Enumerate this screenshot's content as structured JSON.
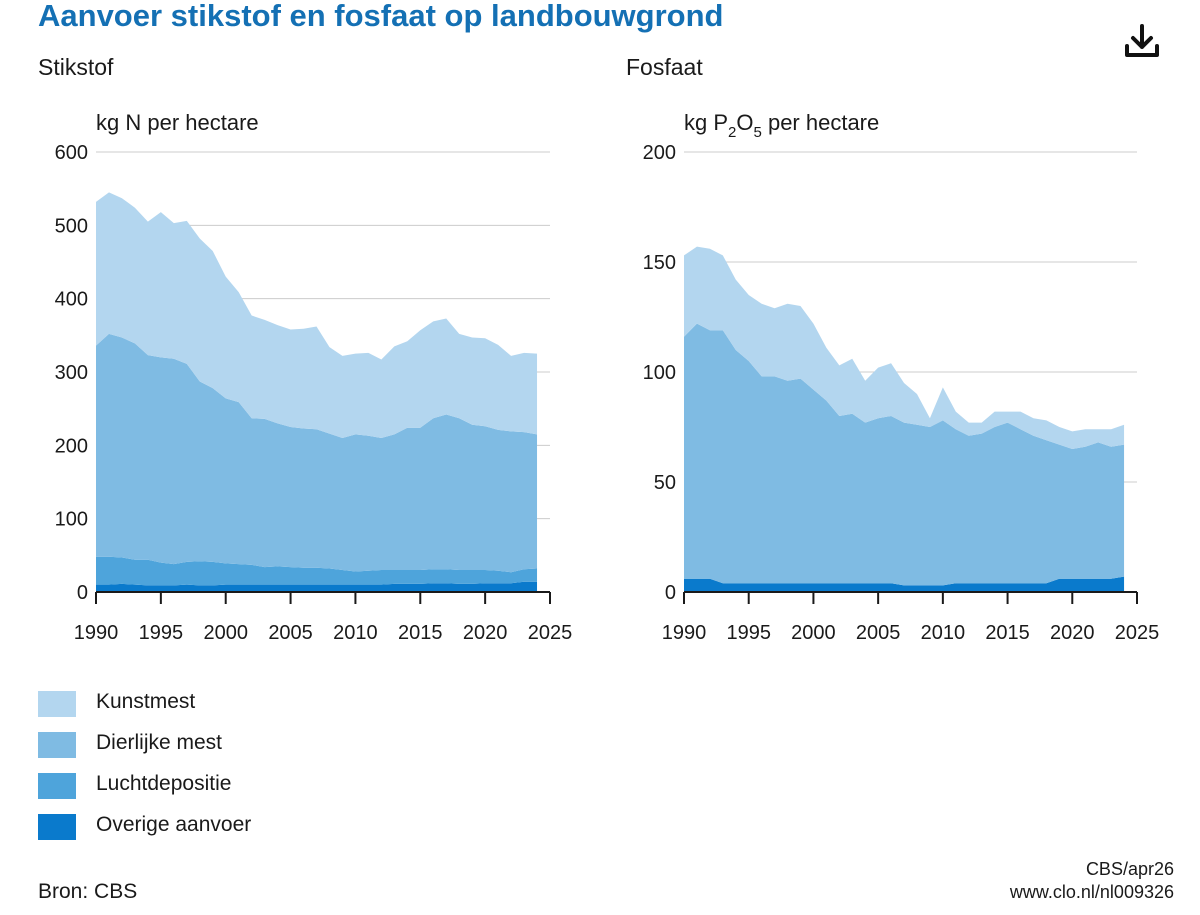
{
  "title": "Aanvoer stikstof en fosfaat op landbouwgrond",
  "download_label": "Download",
  "source": "Bron: CBS",
  "credit_line1": "CBS/apr26",
  "credit_line2": "www.clo.nl/nl009326",
  "colors": {
    "title": "#1470b4",
    "kunstmest": "#b3d6ef",
    "dierlijke_mest": "#7fbbe3",
    "luchtdepositie": "#4ea4db",
    "overige_aanvoer": "#0a7acc",
    "grid": "#cccccc"
  },
  "legend": [
    {
      "label": "Kunstmest",
      "color": "#b3d6ef"
    },
    {
      "label": "Dierlijke mest",
      "color": "#7fbbe3"
    },
    {
      "label": "Luchtdepositie",
      "color": "#4ea4db"
    },
    {
      "label": "Overige aanvoer",
      "color": "#0a7acc"
    }
  ],
  "stikstof_unit": "kg N per hectare",
  "fosfaat_unit_pre": "kg P",
  "fosfaat_unit_sub1": "2",
  "fosfaat_unit_mid": "O",
  "fosfaat_unit_sub2": "5",
  "fosfaat_unit_post": " per hectare",
  "chart_data": [
    {
      "type": "area",
      "stacked": true,
      "title": "Stikstof",
      "ylabel": "kg N per hectare",
      "xlabel": "",
      "xlim": [
        1990,
        2025
      ],
      "ylim": [
        0,
        600
      ],
      "x_ticks": [
        1990,
        1995,
        2000,
        2005,
        2010,
        2015,
        2020,
        2025
      ],
      "y_ticks": [
        0,
        100,
        200,
        300,
        400,
        500,
        600
      ],
      "grid": true,
      "x": [
        1990,
        1991,
        1992,
        1993,
        1994,
        1995,
        1996,
        1997,
        1998,
        1999,
        2000,
        2001,
        2002,
        2003,
        2004,
        2005,
        2006,
        2007,
        2008,
        2009,
        2010,
        2011,
        2012,
        2013,
        2014,
        2015,
        2016,
        2017,
        2018,
        2019,
        2020,
        2021,
        2022,
        2023,
        2024
      ],
      "series": [
        {
          "name": "Overige aanvoer",
          "values": [
            10,
            10,
            11,
            10,
            9,
            9,
            9,
            10,
            9,
            9,
            10,
            10,
            10,
            10,
            10,
            10,
            10,
            10,
            10,
            10,
            10,
            10,
            10,
            11,
            11,
            11,
            12,
            12,
            11,
            11,
            12,
            12,
            12,
            14,
            14
          ]
        },
        {
          "name": "Luchtdepositie",
          "values": [
            38,
            38,
            36,
            34,
            35,
            31,
            29,
            31,
            33,
            32,
            29,
            28,
            27,
            24,
            25,
            24,
            23,
            23,
            22,
            20,
            18,
            19,
            20,
            19,
            19,
            19,
            19,
            19,
            19,
            19,
            18,
            17,
            15,
            17,
            18
          ]
        },
        {
          "name": "Dierlijke mest",
          "values": [
            288,
            304,
            300,
            295,
            279,
            280,
            280,
            270,
            245,
            237,
            225,
            221,
            200,
            202,
            195,
            191,
            190,
            189,
            184,
            180,
            187,
            184,
            180,
            185,
            194,
            194,
            206,
            211,
            207,
            198,
            196,
            192,
            192,
            187,
            183
          ]
        },
        {
          "name": "Kunstmest",
          "values": [
            196,
            193,
            190,
            185,
            182,
            198,
            185,
            195,
            195,
            187,
            166,
            150,
            140,
            135,
            134,
            133,
            136,
            140,
            118,
            112,
            110,
            113,
            107,
            120,
            118,
            133,
            132,
            131,
            115,
            119,
            120,
            116,
            103,
            108,
            110
          ]
        }
      ]
    },
    {
      "type": "area",
      "stacked": true,
      "title": "Fosfaat",
      "ylabel": "kg P2O5 per hectare",
      "xlabel": "",
      "xlim": [
        1990,
        2025
      ],
      "ylim": [
        0,
        200
      ],
      "x_ticks": [
        1990,
        1995,
        2000,
        2005,
        2010,
        2015,
        2020,
        2025
      ],
      "y_ticks": [
        0,
        50,
        100,
        150,
        200
      ],
      "grid": true,
      "x": [
        1990,
        1991,
        1992,
        1993,
        1994,
        1995,
        1996,
        1997,
        1998,
        1999,
        2000,
        2001,
        2002,
        2003,
        2004,
        2005,
        2006,
        2007,
        2008,
        2009,
        2010,
        2011,
        2012,
        2013,
        2014,
        2015,
        2016,
        2017,
        2018,
        2019,
        2020,
        2021,
        2022,
        2023,
        2024
      ],
      "series": [
        {
          "name": "Overige aanvoer",
          "values": [
            6,
            6,
            6,
            4,
            4,
            4,
            4,
            4,
            4,
            4,
            4,
            4,
            4,
            4,
            4,
            4,
            4,
            3,
            3,
            3,
            3,
            4,
            4,
            4,
            4,
            4,
            4,
            4,
            4,
            6,
            6,
            6,
            6,
            6,
            7
          ]
        },
        {
          "name": "Luchtdepositie",
          "values": [
            0,
            0,
            0,
            0,
            0,
            0,
            0,
            0,
            0,
            0,
            0,
            0,
            0,
            0,
            0,
            0,
            0,
            0,
            0,
            0,
            0,
            0,
            0,
            0,
            0,
            0,
            0,
            0,
            0,
            0,
            0,
            0,
            0,
            0,
            0
          ]
        },
        {
          "name": "Dierlijke mest",
          "values": [
            110,
            116,
            113,
            115,
            106,
            101,
            94,
            94,
            92,
            93,
            88,
            83,
            76,
            77,
            73,
            75,
            76,
            74,
            73,
            72,
            75,
            70,
            67,
            68,
            71,
            73,
            70,
            67,
            65,
            61,
            59,
            60,
            62,
            60,
            60
          ]
        },
        {
          "name": "Kunstmest",
          "values": [
            37,
            35,
            37,
            34,
            32,
            30,
            33,
            31,
            35,
            33,
            30,
            24,
            23,
            25,
            19,
            23,
            24,
            18,
            14,
            4,
            15,
            8,
            6,
            5,
            7,
            5,
            8,
            8,
            9,
            8,
            8,
            8,
            6,
            8,
            9
          ]
        }
      ]
    }
  ]
}
